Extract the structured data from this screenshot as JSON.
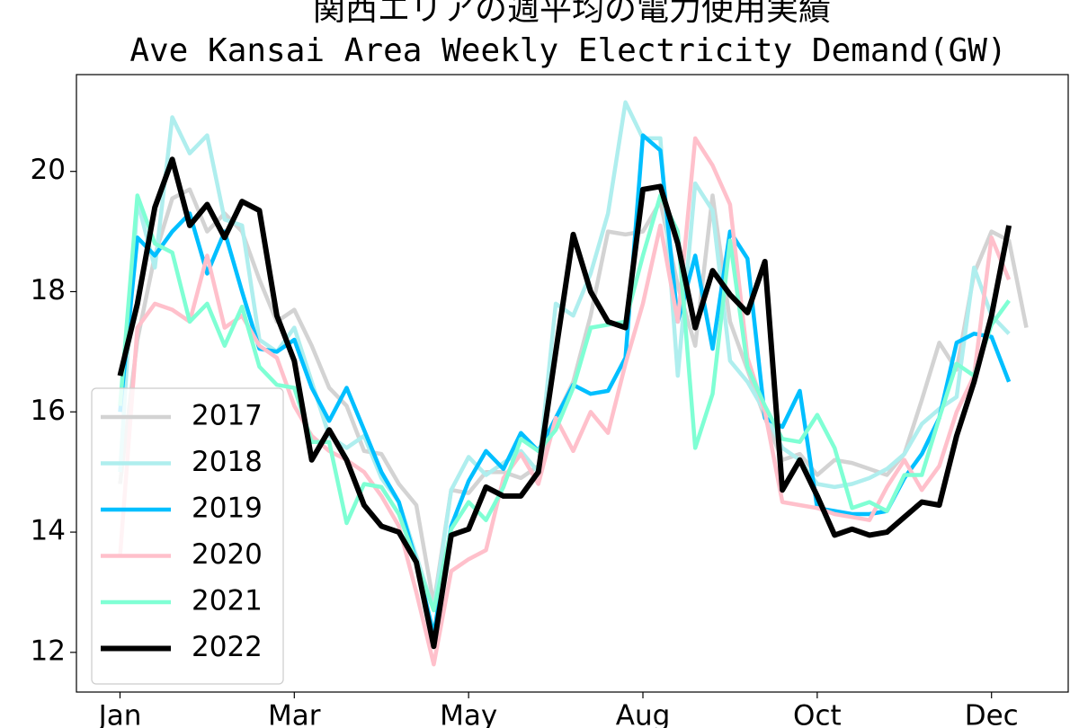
{
  "chart_data": {
    "type": "line",
    "title": "関西エリアの週平均の電力使用実績",
    "subtitle": "Ave Kansai Area Weekly Electricity Demand(GW)",
    "x": [
      0,
      1,
      2,
      3,
      4,
      5,
      6,
      7,
      8,
      9,
      10,
      11,
      12,
      13,
      14,
      15,
      16,
      17,
      18,
      19,
      20,
      21,
      22,
      23,
      24,
      25,
      26,
      27,
      28,
      29,
      30,
      31,
      32,
      33,
      34,
      35,
      36,
      37,
      38,
      39,
      40,
      41,
      42,
      43,
      44,
      45,
      46,
      47,
      48,
      49,
      50,
      51,
      52
    ],
    "xlim": [
      -2.5,
      54.4
    ],
    "xticks": [
      {
        "value": 0,
        "label": "Jan"
      },
      {
        "value": 10,
        "label": "Mar"
      },
      {
        "value": 20,
        "label": "May"
      },
      {
        "value": 30,
        "label": "Aug"
      },
      {
        "value": 40,
        "label": "Oct"
      },
      {
        "value": 50,
        "label": "Dec"
      }
    ],
    "ylim": [
      11.34,
      21.61
    ],
    "yticks": [
      12,
      14,
      16,
      18,
      20
    ],
    "legend": "lower left",
    "series": [
      {
        "name": "2017",
        "color": "#d3d3d3",
        "values": [
          14.8,
          17.2,
          18.6,
          19.55,
          19.7,
          19.0,
          19.3,
          19.0,
          18.2,
          17.5,
          17.7,
          17.1,
          16.4,
          16.1,
          15.35,
          15.3,
          14.8,
          14.45,
          12.8,
          14.7,
          14.65,
          15.0,
          15.0,
          14.9,
          15.1,
          15.9,
          16.5,
          17.6,
          19.0,
          18.95,
          19.0,
          19.5,
          18.1,
          17.1,
          19.6,
          17.5,
          16.7,
          15.9,
          15.2,
          15.3,
          14.95,
          15.2,
          15.15,
          15.05,
          14.95,
          15.3,
          16.2,
          17.15,
          16.7,
          18.3,
          19.0,
          18.85,
          17.4
        ]
      },
      {
        "name": "2018",
        "color": "#afeeee",
        "values": [
          15.0,
          19.5,
          18.4,
          20.9,
          20.3,
          20.6,
          19.2,
          19.1,
          17.2,
          17.0,
          17.4,
          16.5,
          15.6,
          15.4,
          15.6,
          14.9,
          14.5,
          13.6,
          12.7,
          14.7,
          15.25,
          14.95,
          15.15,
          15.35,
          15.0,
          17.8,
          17.6,
          18.3,
          19.3,
          21.15,
          20.55,
          20.55,
          16.6,
          19.8,
          19.35,
          16.85,
          16.5,
          16.0,
          15.4,
          15.2,
          14.8,
          14.75,
          14.8,
          14.9,
          15.05,
          15.3,
          15.8,
          16.05,
          16.25,
          18.4,
          17.6,
          17.3,
          null
        ]
      },
      {
        "name": "2019",
        "color": "#00bfff",
        "values": [
          16.0,
          18.9,
          18.6,
          19.0,
          19.3,
          18.3,
          19.0,
          18.0,
          17.05,
          17.0,
          17.2,
          16.4,
          15.85,
          16.4,
          15.7,
          15.0,
          14.5,
          13.5,
          12.3,
          14.1,
          14.85,
          15.35,
          15.05,
          15.65,
          15.35,
          15.9,
          16.45,
          16.3,
          16.35,
          16.9,
          20.6,
          20.35,
          17.5,
          18.6,
          17.05,
          19.0,
          18.55,
          15.9,
          15.75,
          16.35,
          14.4,
          14.35,
          14.3,
          14.3,
          14.35,
          14.9,
          15.3,
          15.9,
          17.15,
          17.3,
          17.25,
          16.5,
          null
        ]
      },
      {
        "name": "2020",
        "color": "#ffc0cb",
        "values": [
          13.6,
          17.4,
          17.8,
          17.7,
          17.5,
          18.6,
          17.4,
          17.6,
          17.1,
          16.9,
          16.1,
          15.6,
          15.35,
          15.2,
          15.0,
          14.6,
          14.1,
          13.0,
          11.8,
          13.35,
          13.55,
          13.7,
          14.9,
          15.3,
          14.8,
          15.9,
          15.35,
          16.0,
          15.65,
          16.8,
          17.8,
          19.1,
          17.5,
          20.55,
          20.1,
          19.45,
          16.9,
          16.0,
          14.5,
          14.45,
          14.4,
          14.3,
          14.25,
          14.2,
          14.75,
          15.2,
          14.7,
          15.1,
          16.0,
          16.6,
          18.9,
          18.2,
          null
        ]
      },
      {
        "name": "2021",
        "color": "#7fffd4",
        "values": [
          16.1,
          19.6,
          18.8,
          18.65,
          17.5,
          17.8,
          17.1,
          17.75,
          16.75,
          16.45,
          16.4,
          15.5,
          15.5,
          14.15,
          14.8,
          14.75,
          14.3,
          13.5,
          12.7,
          14.05,
          14.5,
          14.2,
          14.75,
          15.55,
          15.35,
          15.7,
          16.4,
          17.4,
          17.45,
          17.5,
          18.6,
          19.6,
          19.0,
          15.4,
          16.3,
          18.85,
          16.75,
          16.1,
          15.55,
          15.5,
          15.95,
          15.4,
          14.4,
          14.5,
          14.35,
          14.95,
          14.95,
          15.9,
          16.8,
          16.6,
          17.45,
          17.85,
          null
        ]
      },
      {
        "name": "2022",
        "color": "#000000",
        "values": [
          16.6,
          17.8,
          19.4,
          20.2,
          19.1,
          19.45,
          18.9,
          19.5,
          19.35,
          17.6,
          16.85,
          15.2,
          15.7,
          15.2,
          14.45,
          14.1,
          14.0,
          13.5,
          12.1,
          13.95,
          14.05,
          14.75,
          14.6,
          14.6,
          15.0,
          17.0,
          18.95,
          18.0,
          17.5,
          17.4,
          19.7,
          19.75,
          18.8,
          17.4,
          18.35,
          17.95,
          17.65,
          18.5,
          14.7,
          15.2,
          14.6,
          13.95,
          14.05,
          13.95,
          14.0,
          14.25,
          14.5,
          14.45,
          15.6,
          16.5,
          17.6,
          19.1,
          null
        ]
      }
    ]
  }
}
